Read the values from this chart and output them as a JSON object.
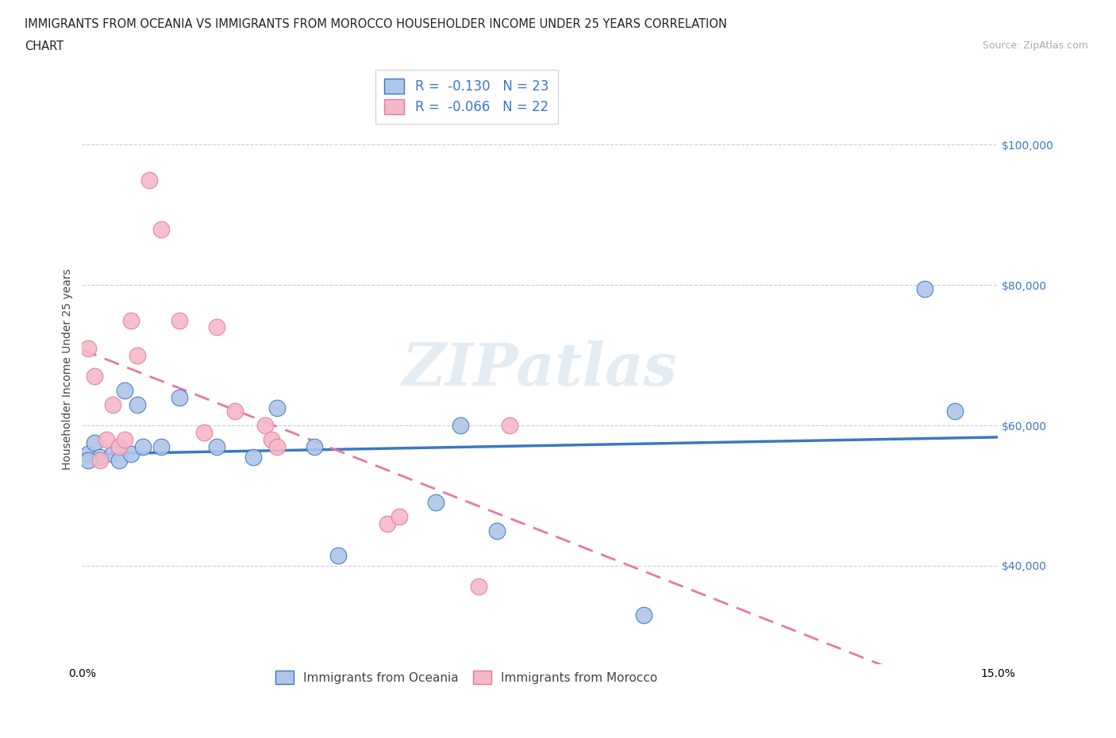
{
  "title_line1": "IMMIGRANTS FROM OCEANIA VS IMMIGRANTS FROM MOROCCO HOUSEHOLDER INCOME UNDER 25 YEARS CORRELATION",
  "title_line2": "CHART",
  "source_text": "Source: ZipAtlas.com",
  "ylabel": "Householder Income Under 25 years",
  "xmin": 0.0,
  "xmax": 0.15,
  "ymin": 26000,
  "ymax": 110000,
  "yticks": [
    40000,
    60000,
    80000,
    100000
  ],
  "ytick_labels": [
    "$40,000",
    "$60,000",
    "$80,000",
    "$100,000"
  ],
  "xticks": [
    0.0,
    0.03,
    0.06,
    0.09,
    0.12,
    0.15
  ],
  "xtick_labels": [
    "0.0%",
    "",
    "",
    "",
    "",
    "15.0%"
  ],
  "watermark": "ZIPatlas",
  "legend_oceania_r": "-0.130",
  "legend_oceania_n": "23",
  "legend_morocco_r": "-0.066",
  "legend_morocco_n": "22",
  "legend_label_oceania": "Immigrants from Oceania",
  "legend_label_morocco": "Immigrants from Morocco",
  "color_oceania": "#aec6e8",
  "color_morocco": "#f4b8c8",
  "color_oceania_line": "#3b78c3",
  "color_morocco_line": "#e8789a",
  "color_axis_label": "#3b78c3",
  "oceania_x": [
    0.001,
    0.002,
    0.003,
    0.005,
    0.006,
    0.007,
    0.008,
    0.009,
    0.01,
    0.013,
    0.016,
    0.022,
    0.028,
    0.032,
    0.038,
    0.042,
    0.058,
    0.062,
    0.068,
    0.092,
    0.138,
    0.143,
    0.001
  ],
  "oceania_y": [
    56000,
    57500,
    55500,
    56000,
    55000,
    65000,
    56000,
    63000,
    57000,
    57000,
    64000,
    57000,
    55500,
    62500,
    57000,
    41500,
    49000,
    60000,
    45000,
    33000,
    79500,
    62000,
    55000
  ],
  "morocco_x": [
    0.001,
    0.002,
    0.003,
    0.004,
    0.005,
    0.006,
    0.007,
    0.008,
    0.009,
    0.011,
    0.013,
    0.016,
    0.02,
    0.022,
    0.025,
    0.03,
    0.031,
    0.032,
    0.05,
    0.052,
    0.065,
    0.07
  ],
  "morocco_y": [
    71000,
    67000,
    55000,
    58000,
    63000,
    57000,
    58000,
    75000,
    70000,
    95000,
    88000,
    75000,
    59000,
    74000,
    62000,
    60000,
    58000,
    57000,
    46000,
    47000,
    37000,
    60000
  ],
  "grid_color": "#cccccc",
  "background_color": "#ffffff",
  "title_fontsize": 11,
  "axis_label_fontsize": 10,
  "tick_fontsize": 10
}
